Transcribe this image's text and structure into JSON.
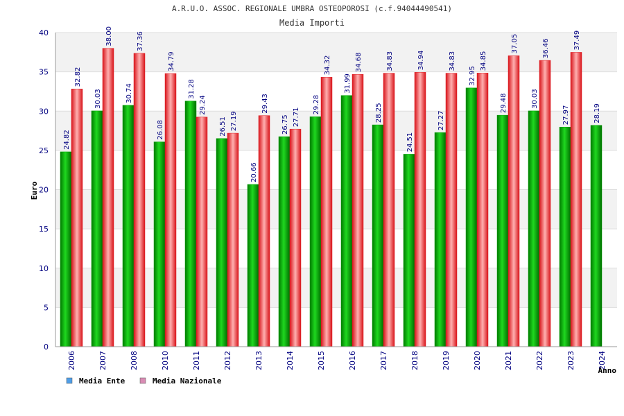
{
  "chart_data": {
    "type": "bar",
    "title": "A.R.U.O. ASSOC. REGIONALE UMBRA OSTEOPOROSI (c.f.94044490541)",
    "subtitle": "Media Importi",
    "ylabel": "Euro",
    "xlabel": "Anno",
    "ylim": [
      0,
      40
    ],
    "yticks": [
      0,
      5,
      10,
      15,
      20,
      25,
      30,
      35,
      40
    ],
    "grid": true,
    "legend_position": "bottom-left",
    "categories": [
      "2006",
      "2007",
      "2008",
      "2010",
      "2011",
      "2012",
      "2013",
      "2014",
      "2015",
      "2016",
      "2017",
      "2018",
      "2019",
      "2020",
      "2021",
      "2022",
      "2023",
      "2024"
    ],
    "series": [
      {
        "name": "Media Ente",
        "color": "#00b000",
        "legend_color": "#4f9ee8",
        "values": [
          24.82,
          30.03,
          30.74,
          26.08,
          31.28,
          26.51,
          20.66,
          26.75,
          29.28,
          31.99,
          28.25,
          24.51,
          27.27,
          32.95,
          29.48,
          30.03,
          27.97,
          28.19
        ],
        "labels": [
          "24.82",
          "30.03",
          "30.74",
          "26.08",
          "31.28",
          "26.51",
          "20.66",
          "26.75",
          "29.28",
          "31.99",
          "28.25",
          "24.51",
          "27.27",
          "32.95",
          "29.48",
          "30.03",
          "27.97",
          "28.19"
        ]
      },
      {
        "name": "Media Nazionale",
        "color": "#e8242a",
        "legend_color": "#d98cb4",
        "values": [
          32.82,
          38.0,
          37.36,
          34.79,
          29.24,
          27.19,
          29.43,
          27.71,
          34.32,
          34.68,
          34.83,
          34.94,
          34.83,
          34.85,
          37.05,
          36.46,
          37.49,
          null
        ],
        "labels": [
          "32.82",
          "38.00",
          "37.36",
          "34.79",
          "29.24",
          "27.19",
          "29.43",
          "27.71",
          "34.32",
          "34.68",
          "34.83",
          "34.94",
          "34.83",
          "34.85",
          "37.05",
          "36.46",
          "37.49",
          null
        ]
      }
    ]
  }
}
